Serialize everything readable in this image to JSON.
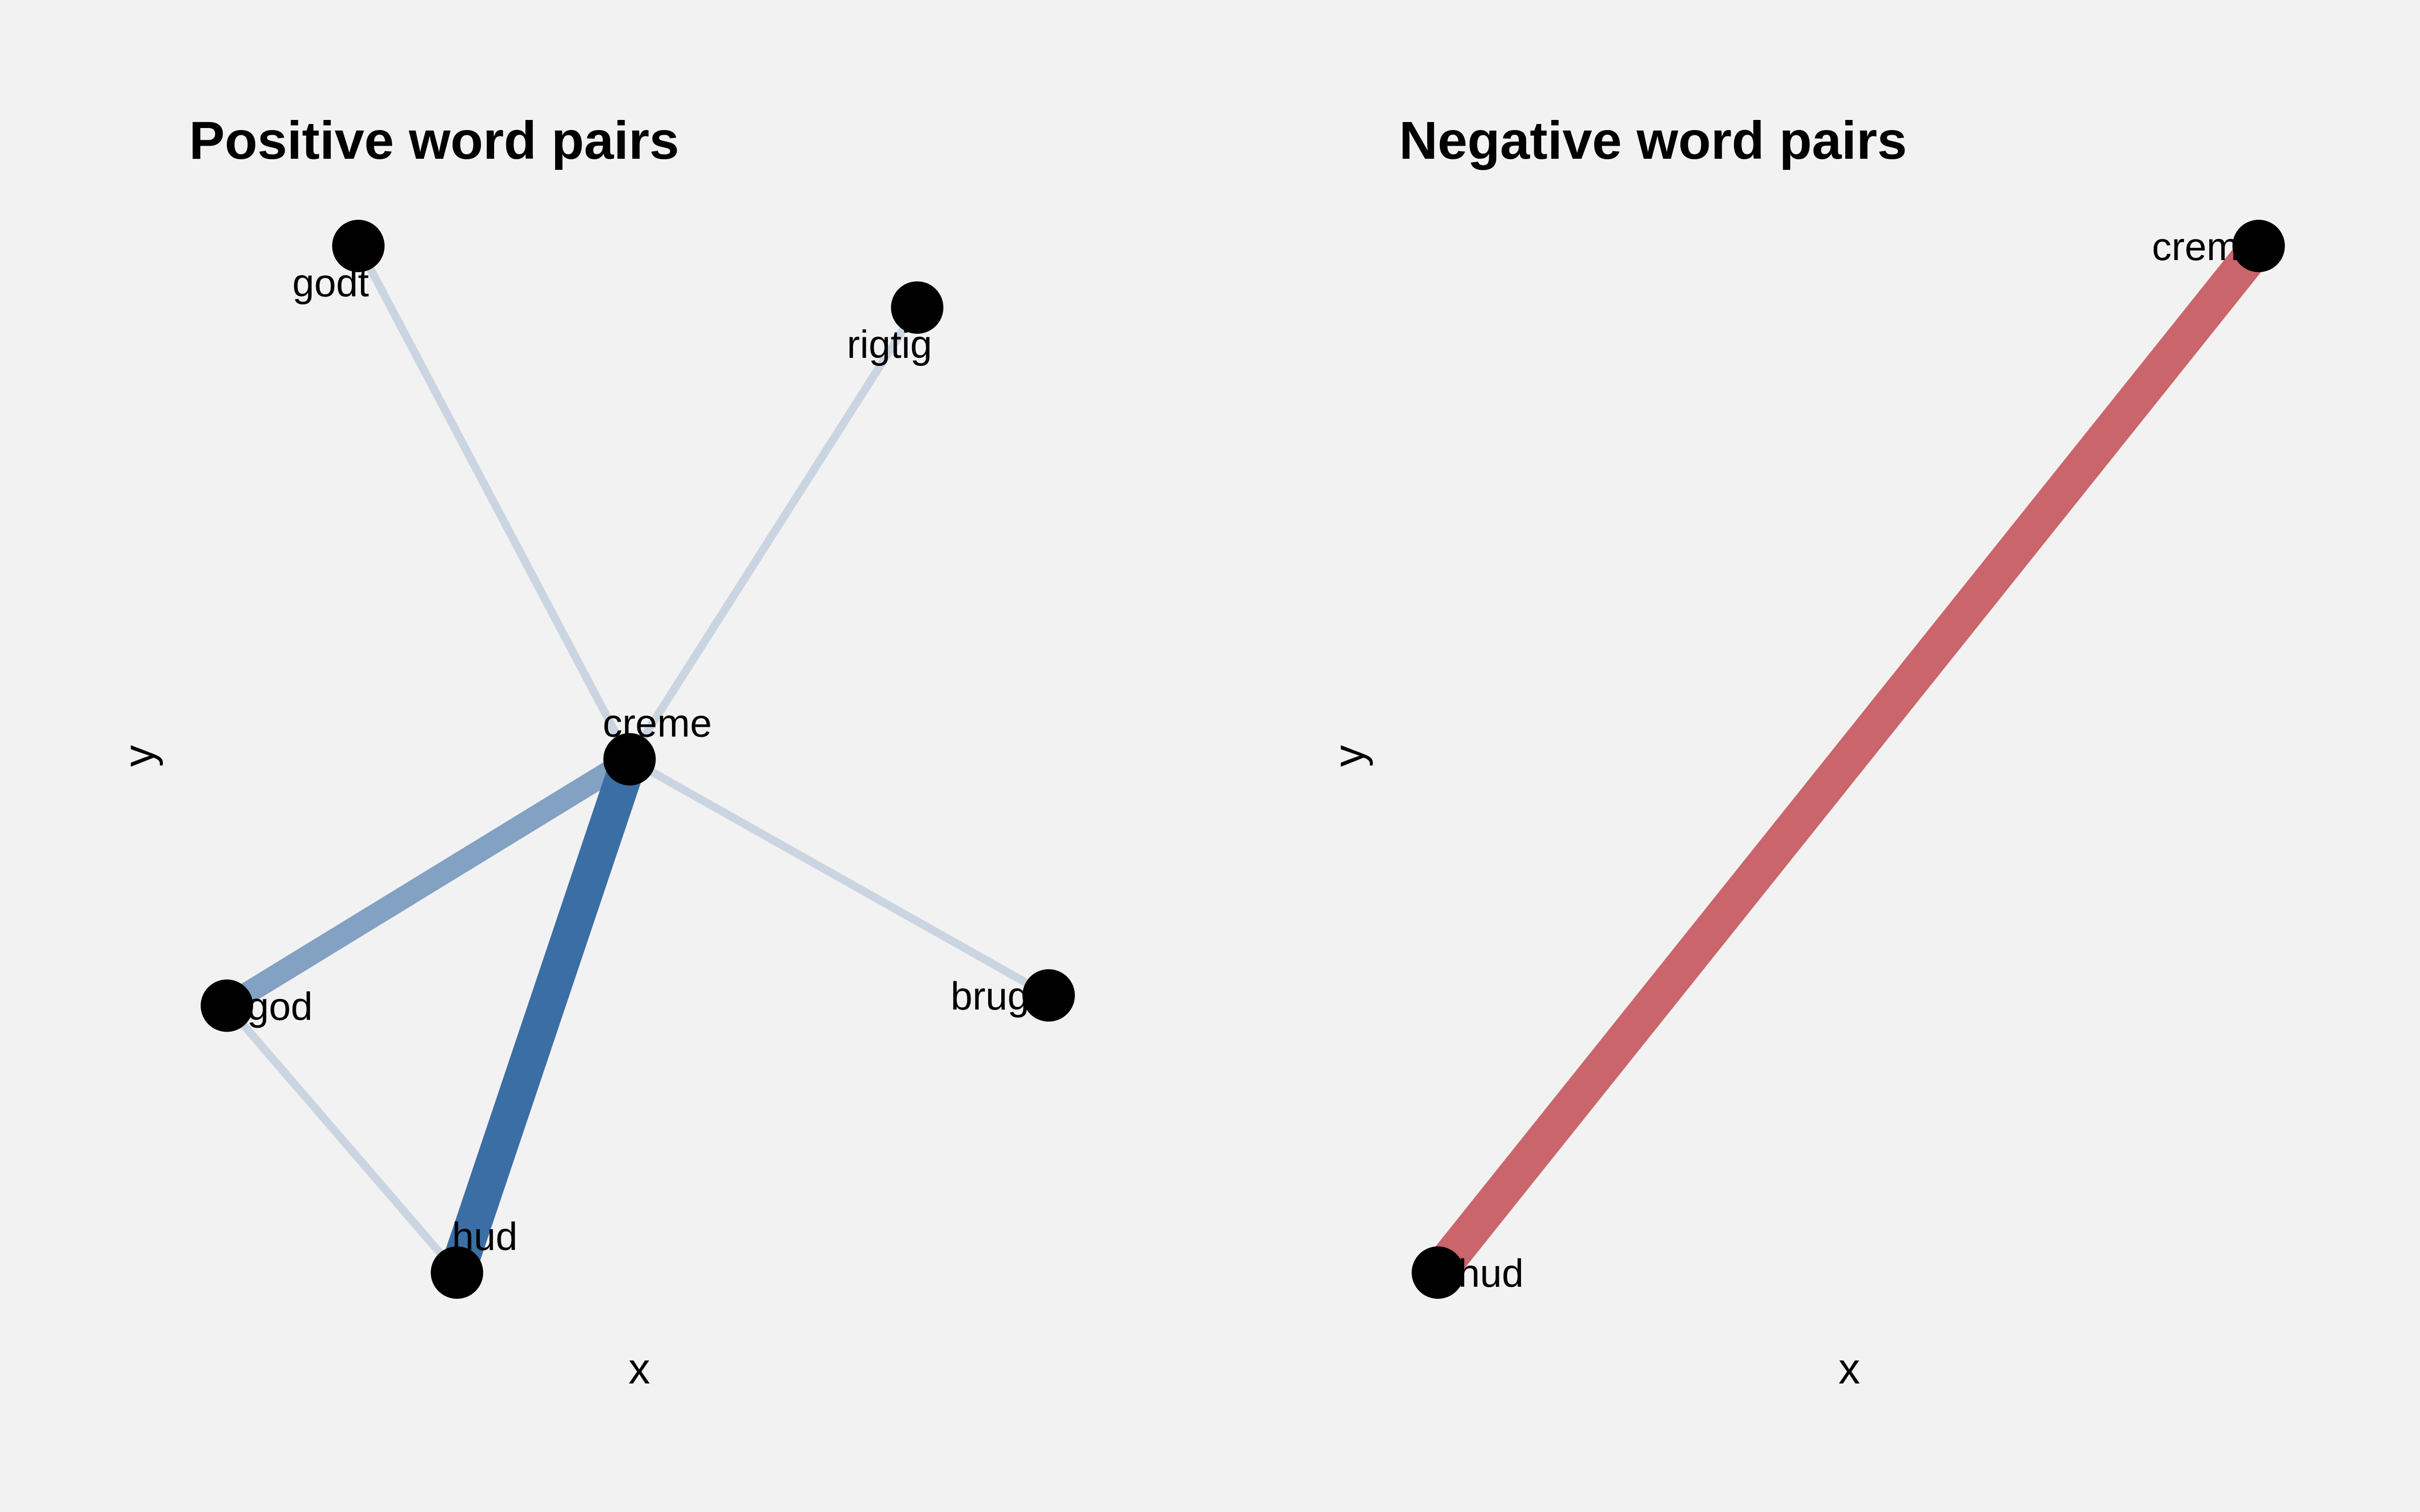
{
  "chart_data": [
    {
      "type": "network",
      "title": "Positive word pairs",
      "xlabel": "x",
      "ylabel": "y",
      "edge_color": "#3a6ea5",
      "nodes": [
        {
          "id": "godt",
          "label": "godt",
          "x": 0.16,
          "y": 1.0,
          "label_pos": "bottom"
        },
        {
          "id": "rigtig",
          "label": "rigtig",
          "x": 0.84,
          "y": 0.94,
          "label_pos": "bottom"
        },
        {
          "id": "creme",
          "label": "creme",
          "x": 0.49,
          "y": 0.5,
          "label_pos": "top"
        },
        {
          "id": "god",
          "label": "god",
          "x": 0.0,
          "y": 0.26,
          "label_pos": "right"
        },
        {
          "id": "bruge",
          "label": "bruge",
          "x": 1.0,
          "y": 0.27,
          "label_pos": "left"
        },
        {
          "id": "hud",
          "label": "hud",
          "x": 0.28,
          "y": 0.0,
          "label_pos": "top"
        }
      ],
      "edges": [
        {
          "from": "godt",
          "to": "creme",
          "weight": 1
        },
        {
          "from": "rigtig",
          "to": "creme",
          "weight": 1
        },
        {
          "from": "creme",
          "to": "bruge",
          "weight": 1
        },
        {
          "from": "god",
          "to": "hud",
          "weight": 1
        },
        {
          "from": "god",
          "to": "creme",
          "weight": 3
        },
        {
          "from": "hud",
          "to": "creme",
          "weight": 5
        }
      ]
    },
    {
      "type": "network",
      "title": "Negative word pairs",
      "xlabel": "x",
      "ylabel": "y",
      "edge_color": "#c9656b",
      "nodes": [
        {
          "id": "creme",
          "label": "creme",
          "x": 1.0,
          "y": 1.0,
          "label_pos": "left"
        },
        {
          "id": "hud",
          "label": "hud",
          "x": 0.0,
          "y": 0.0,
          "label_pos": "right"
        }
      ],
      "edges": [
        {
          "from": "hud",
          "to": "creme",
          "weight": 5
        }
      ]
    }
  ]
}
